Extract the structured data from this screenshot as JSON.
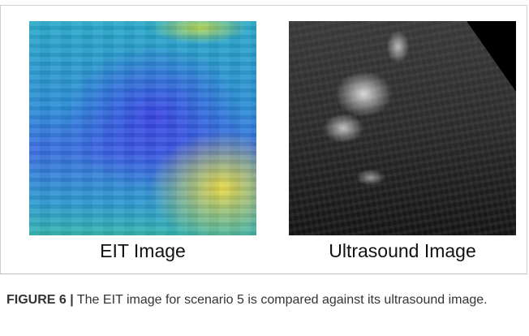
{
  "figure": {
    "panels": [
      {
        "label": "EIT Image"
      },
      {
        "label": "Ultrasound Image"
      }
    ],
    "caption": {
      "label": "FIGURE 6 |",
      "text": " The EIT image for scenario 5 is compared against its ultrasound image."
    }
  }
}
